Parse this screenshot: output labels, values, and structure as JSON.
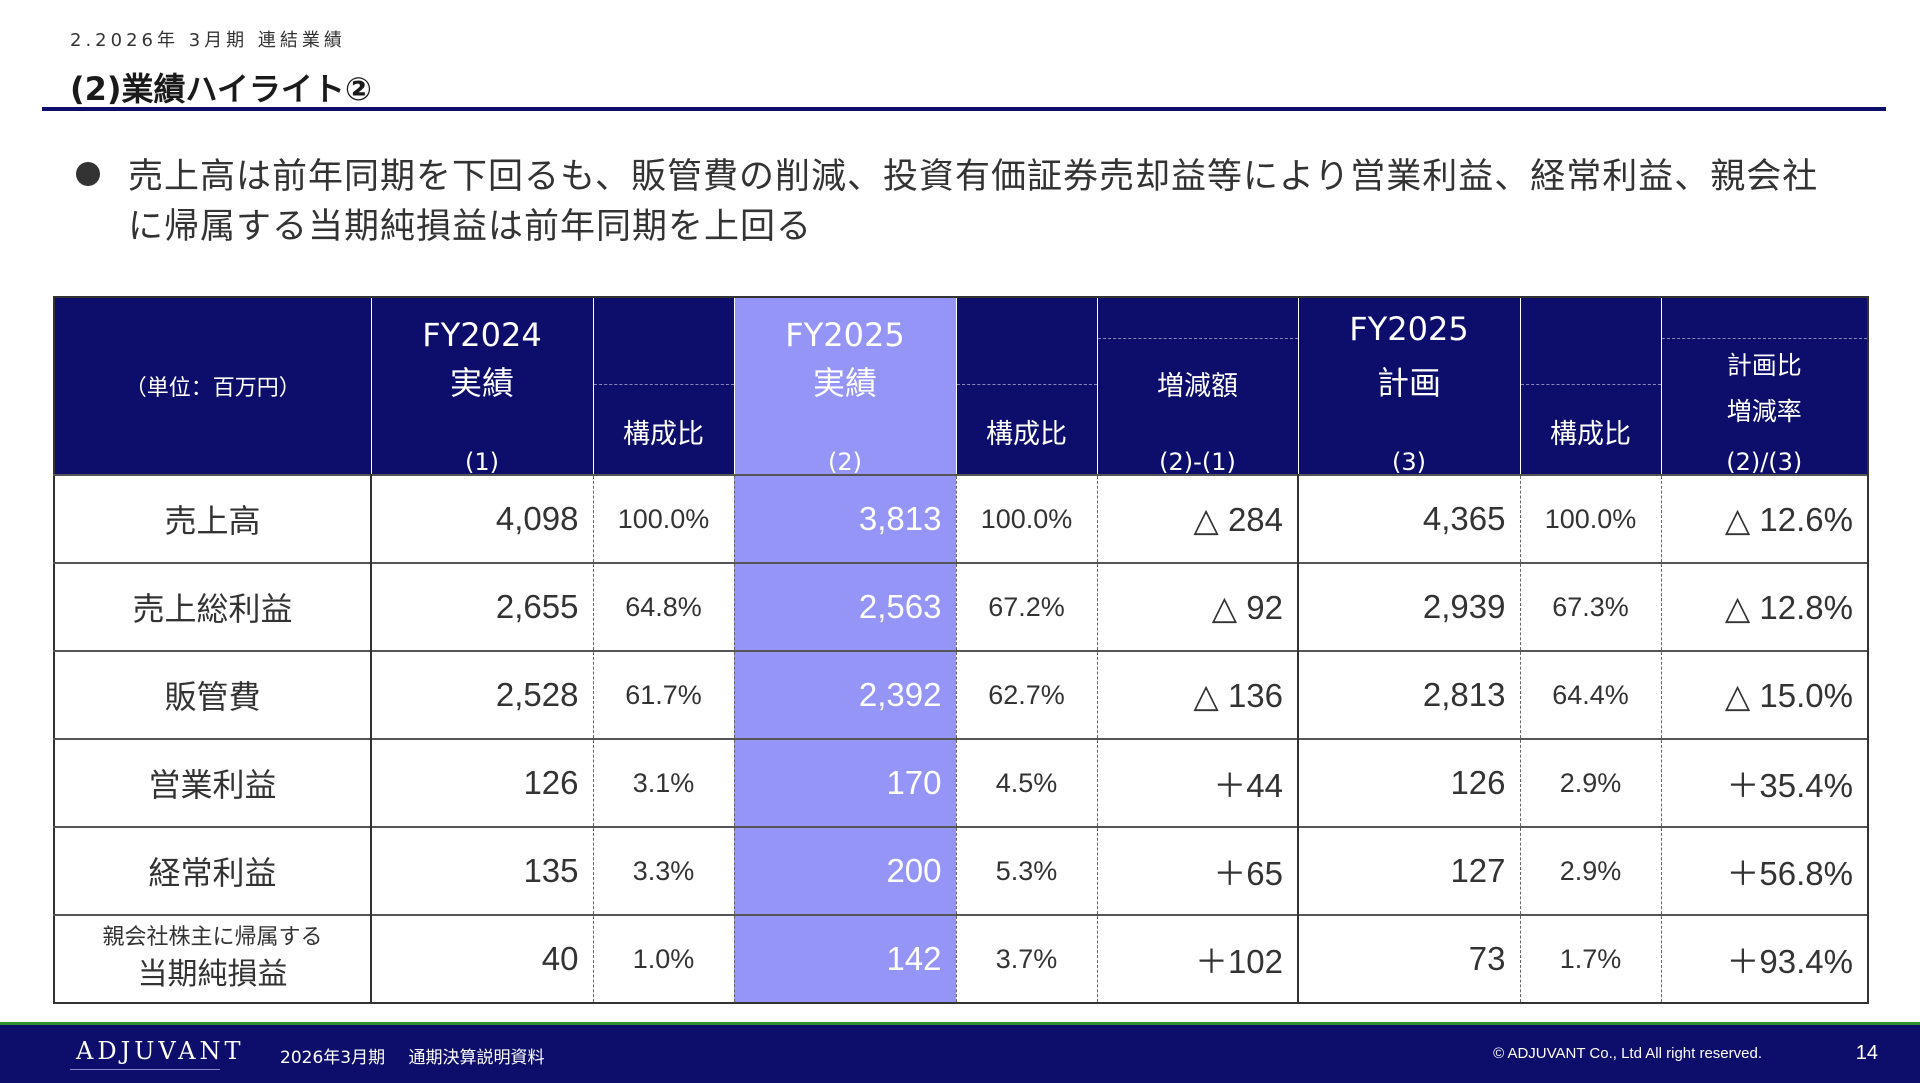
{
  "header": {
    "section": "2.2026年 3月期 連結業績",
    "title": "(2)業績ハイライト②"
  },
  "bullet": "売上高は前年同期を下回るも、販管費の削減、投資有価証券売却益等により営業利益、経常利益、親会社に帰属する当期純損益は前年同期を上回る",
  "table": {
    "unit_label": "（単位：百万円）",
    "col_fy2024": {
      "line1": "FY2024",
      "line2": "実績",
      "ref": "(1)"
    },
    "col_fy2025": {
      "line1": "FY2025",
      "line2": "実績",
      "ref": "(2)"
    },
    "col_plan": {
      "line1": "FY2025",
      "line2": "計画",
      "ref": "(3)"
    },
    "ratio_label": "構成比",
    "diff_label": "増減額",
    "diff_ref": "(2)-(1)",
    "plan_ratio_line1": "計画比",
    "plan_ratio_line2": "増減率",
    "plan_ratio_ref": "(2)/(3)",
    "rows": [
      {
        "label": "売上高",
        "fy2024": "4,098",
        "fy2024_ratio": "100.0%",
        "fy2025": "3,813",
        "fy2025_ratio": "100.0%",
        "diff": "△ 284",
        "plan": "4,365",
        "plan_ratio": "100.0%",
        "vs_plan": "△ 12.6%"
      },
      {
        "label": "売上総利益",
        "fy2024": "2,655",
        "fy2024_ratio": "64.8%",
        "fy2025": "2,563",
        "fy2025_ratio": "67.2%",
        "diff": "△ 92",
        "plan": "2,939",
        "plan_ratio": "67.3%",
        "vs_plan": "△ 12.8%"
      },
      {
        "label": "販管費",
        "fy2024": "2,528",
        "fy2024_ratio": "61.7%",
        "fy2025": "2,392",
        "fy2025_ratio": "62.7%",
        "diff": "△ 136",
        "plan": "2,813",
        "plan_ratio": "64.4%",
        "vs_plan": "△ 15.0%"
      },
      {
        "label": "営業利益",
        "fy2024": "126",
        "fy2024_ratio": "3.1%",
        "fy2025": "170",
        "fy2025_ratio": "4.5%",
        "diff": "＋44",
        "plan": "126",
        "plan_ratio": "2.9%",
        "vs_plan": "＋35.4%"
      },
      {
        "label": "経常利益",
        "fy2024": "135",
        "fy2024_ratio": "3.3%",
        "fy2025": "200",
        "fy2025_ratio": "5.3%",
        "diff": "＋65",
        "plan": "127",
        "plan_ratio": "2.9%",
        "vs_plan": "＋56.8%"
      },
      {
        "label_small": "親会社株主に帰属する",
        "label": "当期純損益",
        "fy2024": "40",
        "fy2024_ratio": "1.0%",
        "fy2025": "142",
        "fy2025_ratio": "3.7%",
        "diff": "＋102",
        "plan": "73",
        "plan_ratio": "1.7%",
        "vs_plan": "＋93.4%"
      }
    ]
  },
  "footer": {
    "logo": "ADJUVANT",
    "period": "2026年3月期",
    "doc": "通期決算説明資料",
    "copyright": "© ADJUVANT Co., Ltd All right reserved.",
    "page": "14"
  },
  "colors": {
    "navy": "#0d0d6b",
    "highlight": "#9595f7",
    "footer_accent": "#2f8f2f"
  }
}
